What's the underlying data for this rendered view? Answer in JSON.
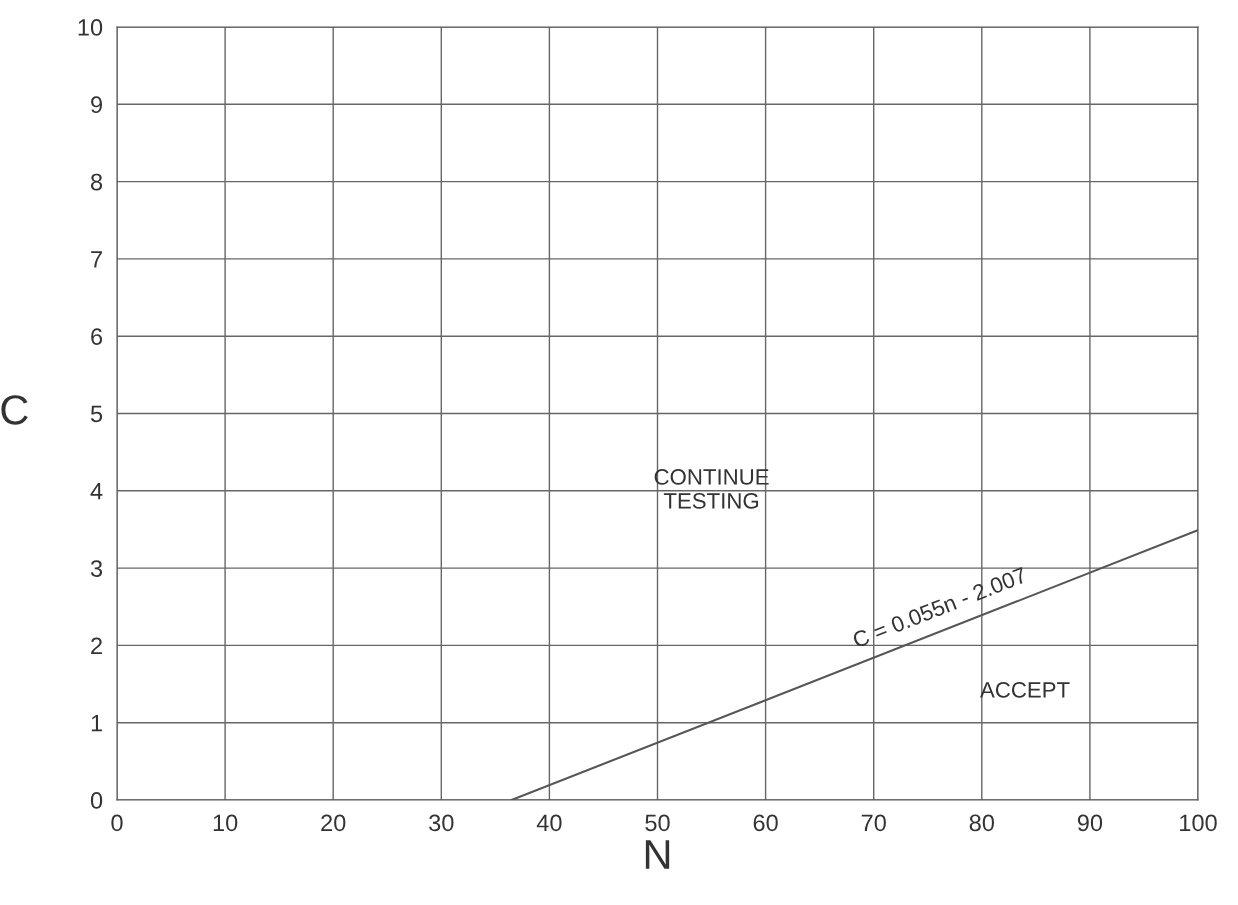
{
  "chart_data": {
    "type": "line",
    "xlabel": "N",
    "ylabel": "C",
    "series": [
      {
        "name": "C = 0.055n - 2.007",
        "color": "#555555",
        "x": [
          36.5,
          100
        ],
        "values": [
          0,
          3.49
        ]
      }
    ],
    "annotations": [
      "CONTINUE\nTESTING",
      "ACCEPT"
    ],
    "xlim": [
      0,
      100
    ],
    "ylim": [
      0,
      10
    ],
    "xticks": [
      0,
      10,
      20,
      30,
      40,
      50,
      60,
      70,
      80,
      90,
      100
    ],
    "yticks": [
      0,
      1,
      2,
      3,
      4,
      5,
      6,
      7,
      8,
      9,
      10
    ],
    "grid": true,
    "marker": "none",
    "line_style": "solid"
  }
}
